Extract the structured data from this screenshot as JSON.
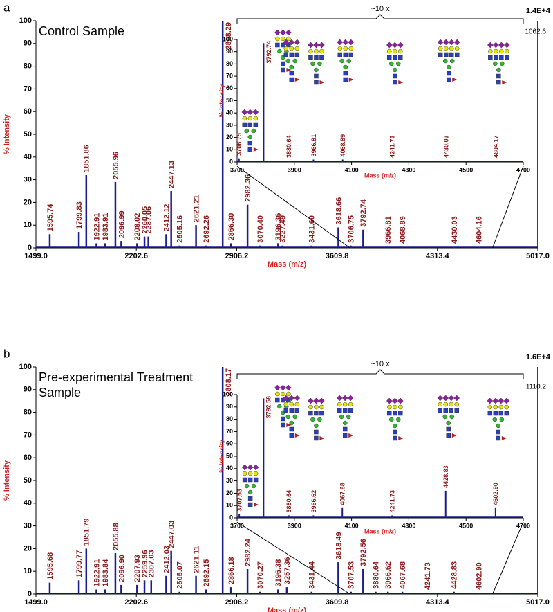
{
  "chart_data": [
    {
      "type": "bar",
      "panel_label": "a",
      "title_lines": [
        "Control Sample"
      ],
      "max_count_label": "1.4E+4",
      "xlabel": "Mass (m/z)",
      "ylabel": "% Intensity",
      "xlim": [
        1499.0,
        5017.0
      ],
      "xticks": [
        {
          "value": 1499.0,
          "label": "1499.0"
        },
        {
          "value": 2202.6,
          "label": "2202.6"
        },
        {
          "value": 2906.2,
          "label": "2906.2"
        },
        {
          "value": 3609.8,
          "label": "3609.8"
        },
        {
          "value": 4313.4,
          "label": "4313.4"
        },
        {
          "value": 5017.0,
          "label": "5017.0"
        }
      ],
      "ylim": [
        0,
        100
      ],
      "yticks": [
        0,
        10,
        20,
        30,
        40,
        50,
        60,
        70,
        80,
        90,
        100
      ],
      "x": [
        1595.74,
        1799.83,
        1851.86,
        1922.91,
        1983.91,
        2055.96,
        2096.99,
        2208.02,
        2260.05,
        2287.06,
        2412.12,
        2447.13,
        2505.16,
        2621.21,
        2692.26,
        2808.29,
        2866.3,
        2982.36,
        3070.4,
        3196.36,
        3227.49,
        3431.6,
        3618.66,
        3706.75,
        3792.74,
        3966.81,
        4068.89,
        4430.03,
        4604.16
      ],
      "x_labels": [
        "1595.74",
        "1799.83",
        "1851.86",
        "1922.91",
        "1983.91",
        "2055.96",
        "2096.99",
        "2208.02",
        "2260.05",
        "2287.06",
        "2412.12",
        "2447.13",
        "2505.16",
        "2621.21",
        "2692.26",
        "2808.29",
        "2866.30",
        "2982.36",
        "3070.40",
        "3196.36",
        "3227.49",
        "3431.60",
        "3618.66",
        "3706.75",
        "3792.74",
        "3966.81",
        "4068.89",
        "4430.03",
        "4604.16"
      ],
      "values": [
        6,
        7,
        32,
        2,
        2,
        29,
        3,
        2,
        5,
        5,
        6,
        25,
        1,
        10,
        1,
        100,
        2,
        19,
        1,
        2,
        1,
        1,
        9,
        1,
        8,
        0.5,
        0.5,
        0.3,
        0.3
      ],
      "color": "#1c1c8a",
      "label_color": "#8b1a1a"
    },
    {
      "type": "bar",
      "zoom_label": "~10 x",
      "max_count_label": "1062.6",
      "xlabel": "Mass (m/z)",
      "ylabel": "% Intensity",
      "xlim": [
        3700,
        4700
      ],
      "xticks": [
        3700,
        3900,
        4100,
        4300,
        4500,
        4700
      ],
      "ylim": [
        0,
        100
      ],
      "yticks": [
        0,
        10,
        20,
        30,
        40,
        50,
        60,
        70,
        80,
        90,
        100
      ],
      "x": [
        3706.75,
        3792.74,
        3880.64,
        3966.81,
        4068.89,
        4241.73,
        4430.03,
        4604.17
      ],
      "x_labels": [
        "3706.75",
        "3792.74",
        "3880.64",
        "3966.81",
        "4068.89",
        "4241.73",
        "4430.03",
        "4604.17"
      ],
      "values": [
        3,
        97,
        1,
        2,
        2,
        1,
        1,
        1
      ],
      "color": "#1c1c8a",
      "label_color": "#8b1a1a"
    },
    {
      "type": "bar",
      "panel_label": "b",
      "title_lines": [
        "Pre-experimental Treatment",
        "Sample"
      ],
      "max_count_label": "1.6E+4",
      "xlabel": "Mass (m/z)",
      "ylabel": "% Intensity",
      "xlim": [
        1499.0,
        5017.0
      ],
      "xticks": [
        {
          "value": 1499.0,
          "label": "1499.0"
        },
        {
          "value": 2202.6,
          "label": "2202.6"
        },
        {
          "value": 2906.2,
          "label": "2906.2"
        },
        {
          "value": 3609.8,
          "label": "3609.8"
        },
        {
          "value": 4313.4,
          "label": "4313.4"
        },
        {
          "value": 5017.0,
          "label": "5017.0"
        }
      ],
      "ylim": [
        0,
        100
      ],
      "yticks": [
        0,
        10,
        20,
        30,
        40,
        50,
        60,
        70,
        80,
        90,
        100
      ],
      "x": [
        1595.68,
        1799.77,
        1851.79,
        1922.91,
        1983.84,
        2055.88,
        2096.9,
        2207.93,
        2259.96,
        2307.03,
        2412.03,
        2447.03,
        2505.07,
        2621.11,
        2692.15,
        2808.17,
        2866.18,
        2982.24,
        3070.27,
        3196.38,
        3257.36,
        3431.44,
        3618.49,
        3707.53,
        3792.56,
        3880.64,
        3966.62,
        4067.68,
        4241.73,
        4428.83,
        4602.9
      ],
      "x_labels": [
        "1595.68",
        "1799.77",
        "1851.79",
        "1922.91",
        "1983.84",
        "2055.88",
        "2096.90",
        "2207.93",
        "2259.96",
        "2307.03",
        "2412.03",
        "2447.03",
        "2505.07",
        "2621.11",
        "2692.15",
        "2808.17",
        "2866.18",
        "2982.24",
        "3070.27",
        "3196.38",
        "3257.36",
        "3431.44",
        "3618.49",
        "3707.53",
        "3792.56",
        "3880.64",
        "3966.62",
        "4067.68",
        "4241.73",
        "4428.83",
        "4602.90"
      ],
      "values": [
        5,
        6,
        20,
        2,
        2,
        18,
        4,
        4,
        6,
        6,
        8,
        19,
        1,
        8,
        2,
        100,
        3,
        11,
        1,
        2,
        3,
        1,
        14,
        1,
        11,
        1,
        1,
        1,
        0.5,
        1,
        0.5
      ],
      "color": "#1c1c8a",
      "label_color": "#8b1a1a"
    },
    {
      "type": "bar",
      "zoom_label": "~10 x",
      "max_count_label": "1110.2",
      "xlabel": "Mass (m/z)",
      "ylabel": "% Intensity",
      "xlim": [
        3700,
        4700
      ],
      "xticks": [
        3700,
        3900,
        4100,
        4300,
        4500,
        4700
      ],
      "ylim": [
        0,
        100
      ],
      "yticks": [
        0,
        10,
        20,
        30,
        40,
        50,
        60,
        70,
        80,
        90,
        100
      ],
      "x": [
        3707.53,
        3792.56,
        3880.64,
        3966.62,
        4067.68,
        4241.73,
        4428.83,
        4602.9
      ],
      "x_labels": [
        "3707.53",
        "3792.56",
        "3880.64",
        "3966.62",
        "4067.68",
        "4241.73",
        "4428.83",
        "4602.90"
      ],
      "values": [
        3,
        97,
        2,
        2,
        8,
        2,
        22,
        8
      ],
      "color": "#1c1c8a",
      "label_color": "#8b1a1a"
    }
  ]
}
